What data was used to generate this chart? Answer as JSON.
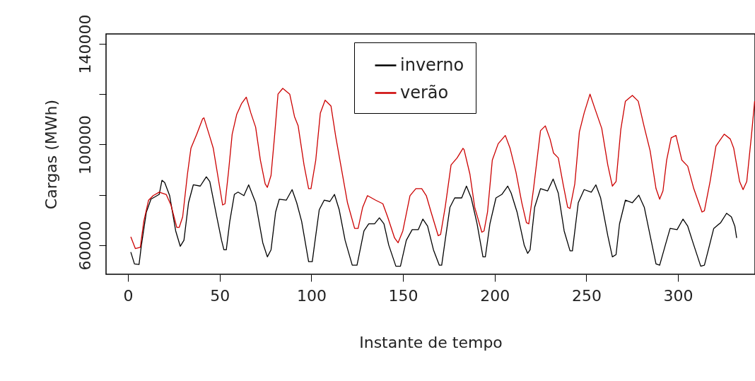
{
  "chart_data": {
    "type": "line",
    "xlabel": "Instante de tempo",
    "ylabel": "Cargas (MWh)",
    "xlim": [
      -12,
      342
    ],
    "ylim": [
      48500,
      143900
    ],
    "xticks": [
      0,
      50,
      100,
      150,
      200,
      250,
      300
    ],
    "yticks": [
      60000,
      {
        "value": 80000,
        "label": null
      },
      100000,
      {
        "value": 120000,
        "label": null
      },
      140000
    ],
    "grid": false,
    "legend": "top",
    "line_style": "solid",
    "marker": "none",
    "series": [
      {
        "name": "inverno",
        "color": "#000000",
        "x": [
          1.5,
          3.5,
          6,
          7.3,
          10,
          12.5,
          17,
          18.5,
          20,
          22.7,
          26,
          28.5,
          30.5,
          33,
          35.6,
          39.4,
          42.7,
          44.6,
          48.4,
          51,
          52.3,
          53.6,
          55.5,
          58,
          60,
          63.2,
          65.8,
          69.6,
          73.5,
          76,
          78,
          80.5,
          82.5,
          86.3,
          89.5,
          92,
          94.7,
          98.5,
          100.5,
          101.7,
          104.3,
          107,
          110.1,
          112.6,
          115.2,
          118.4,
          122.3,
          124.9,
          128.7,
          131.3,
          134.5,
          137.1,
          139.6,
          142.2,
          146.1,
          148.6,
          151.8,
          155,
          158.3,
          160.8,
          163.4,
          166.6,
          169.8,
          171.1,
          173,
          175.6,
          178.2,
          182,
          184.6,
          187.2,
          190.4,
          193.6,
          194.9,
          197.4,
          200.7,
          203.9,
          207.1,
          209,
          212.2,
          216.1,
          218,
          219.3,
          221.8,
          225,
          228.9,
          231.9,
          234.7,
          237.9,
          241.1,
          242.4,
          245.6,
          248.8,
          252.7,
          255.2,
          257.8,
          261.7,
          264.2,
          266.2,
          268.1,
          271.3,
          275.1,
          278.6,
          281.6,
          284.8,
          288,
          290,
          293.1,
          295.7,
          299.5,
          302.7,
          305.3,
          308.6,
          312.4,
          314.4,
          316.9,
          319.5,
          323.3,
          326.5,
          329.1,
          331,
          332
        ],
        "values": [
          57300,
          52600,
          52400,
          60100,
          73200,
          78300,
          80200,
          85800,
          84900,
          79700,
          65700,
          59600,
          62000,
          76900,
          84000,
          83500,
          87200,
          85300,
          71300,
          62000,
          58200,
          58200,
          69500,
          80200,
          81100,
          79700,
          84000,
          76900,
          61000,
          55400,
          58200,
          73200,
          78300,
          77900,
          82100,
          76900,
          69500,
          53500,
          53500,
          60100,
          74100,
          77900,
          77400,
          80200,
          74100,
          62000,
          52100,
          52100,
          65700,
          68500,
          68500,
          70900,
          68500,
          60100,
          51700,
          51700,
          62000,
          66200,
          66200,
          70400,
          67600,
          58200,
          52100,
          52100,
          62000,
          75100,
          78800,
          78800,
          83500,
          78800,
          68500,
          55400,
          55400,
          68500,
          78800,
          80200,
          83500,
          80700,
          73200,
          60100,
          56800,
          58200,
          75100,
          82500,
          81600,
          86300,
          80700,
          65700,
          57800,
          57800,
          76900,
          82100,
          81100,
          84000,
          78800,
          63800,
          55400,
          56300,
          68500,
          77900,
          76900,
          79900,
          75100,
          63800,
          52600,
          52100,
          60100,
          66700,
          66200,
          70400,
          67600,
          60100,
          51700,
          52100,
          59200,
          66700,
          69000,
          72700,
          71300,
          67600,
          62900
        ]
      },
      {
        "name": "verão",
        "color": "#cc0000",
        "x": [
          1.5,
          4,
          6.7,
          8.6,
          11.2,
          13.7,
          17,
          20.8,
          23.4,
          26.6,
          27.9,
          29.8,
          32.4,
          34.3,
          37.5,
          40.7,
          41.4,
          44.6,
          46.5,
          49.7,
          51.6,
          52.9,
          54.8,
          56.8,
          59.3,
          61.9,
          64.5,
          67,
          69.6,
          72.2,
          74.8,
          76,
          78,
          79.9,
          81.8,
          84.4,
          88.2,
          90.8,
          92.8,
          96,
          98.5,
          99.8,
          102.4,
          104.9,
          107.5,
          110.7,
          113.3,
          116.5,
          119.7,
          123.6,
          125.5,
          128,
          130.6,
          135.1,
          139,
          141.6,
          145.4,
          147.3,
          149.9,
          153.8,
          157,
          160.2,
          162.7,
          165.3,
          169.2,
          170.5,
          173,
          176.2,
          179.5,
          182.7,
          183.3,
          186.5,
          189.1,
          193,
          194.2,
          196.1,
          198.7,
          201.9,
          205.8,
          208.4,
          211.6,
          214.8,
          217.3,
          218.6,
          221.2,
          225,
          227.6,
          230.2,
          232.1,
          234.7,
          237.3,
          239.8,
          241.1,
          243.7,
          246.2,
          248.8,
          252,
          254.6,
          258.4,
          261.7,
          264.2,
          266.2,
          268.8,
          271.3,
          275.1,
          278.3,
          281.6,
          284.8,
          288,
          290,
          291.8,
          293.8,
          296.3,
          298.9,
          302.1,
          305.3,
          308.6,
          313.1,
          314.4,
          317.5,
          320.7,
          325.2,
          328.5,
          330.4,
          333.6,
          335.5,
          337.5,
          340,
          341.8
        ],
        "values": [
          63400,
          58700,
          59200,
          69500,
          77900,
          79700,
          81100,
          80200,
          76000,
          67100,
          67100,
          71300,
          88200,
          98500,
          104100,
          110200,
          110600,
          103100,
          98500,
          84400,
          76000,
          76500,
          89100,
          104100,
          112000,
          116200,
          118800,
          112500,
          106900,
          93800,
          84400,
          83000,
          87700,
          103100,
          120000,
          122300,
          120000,
          111100,
          107400,
          91900,
          82500,
          82500,
          93800,
          112500,
          117600,
          115300,
          103100,
          90000,
          76900,
          66700,
          66700,
          75100,
          79700,
          77900,
          76500,
          71300,
          62900,
          61000,
          65700,
          79700,
          82500,
          82500,
          79700,
          73200,
          63800,
          64300,
          75100,
          91900,
          94700,
          98500,
          98000,
          88200,
          75100,
          65200,
          65700,
          73200,
          93800,
          100300,
          103600,
          98500,
          89100,
          76900,
          69000,
          68500,
          82500,
          105500,
          107400,
          102200,
          96600,
          94700,
          84400,
          75100,
          74600,
          84400,
          105000,
          112500,
          120000,
          114400,
          106400,
          91900,
          83500,
          85300,
          106000,
          117200,
          119500,
          117200,
          106900,
          97500,
          82500,
          78300,
          81600,
          93800,
          102700,
          103600,
          93800,
          91400,
          82500,
          73200,
          73700,
          85300,
          99400,
          104100,
          102200,
          98500,
          85300,
          82100,
          85300,
          103100,
          117200
        ]
      }
    ]
  }
}
